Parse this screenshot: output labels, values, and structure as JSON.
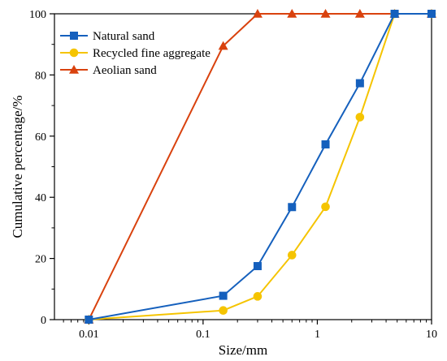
{
  "chart_data": {
    "type": "line",
    "xscale": "log",
    "xlim": [
      0.005,
      10
    ],
    "ylim": [
      0,
      100
    ],
    "xlabel": "Size/mm",
    "ylabel": "Cumulative percentage/%",
    "x_ticks": [
      0.01,
      0.1,
      1,
      10
    ],
    "x_tick_labels": [
      "0.01",
      "0.1",
      "1",
      "10"
    ],
    "y_ticks": [
      0,
      20,
      40,
      60,
      80,
      100
    ],
    "y_tick_labels": [
      "0",
      "20",
      "40",
      "60",
      "80",
      "100"
    ],
    "grid": false,
    "legend_position": "top-left",
    "series": [
      {
        "name": "Natural sand",
        "color": "#1560BD",
        "marker": "square",
        "x": [
          0.01,
          0.15,
          0.3,
          0.6,
          1.18,
          2.36,
          4.75,
          10
        ],
        "y": [
          0,
          7.8,
          17.5,
          36.8,
          57.3,
          77.3,
          100,
          100
        ]
      },
      {
        "name": "Recycled fine aggregate",
        "color": "#F5C400",
        "marker": "circle",
        "x": [
          0.01,
          0.15,
          0.3,
          0.6,
          1.18,
          2.36,
          4.75,
          10
        ],
        "y": [
          0,
          3,
          7.6,
          21.1,
          36.9,
          66.2,
          100,
          100
        ]
      },
      {
        "name": "Aeolian sand",
        "color": "#D9420E",
        "marker": "triangle",
        "x": [
          0.01,
          0.15,
          0.3,
          0.6,
          1.18,
          2.36,
          4.75,
          10
        ],
        "y": [
          0,
          89.5,
          100,
          100,
          100,
          100,
          100,
          100
        ]
      }
    ]
  }
}
